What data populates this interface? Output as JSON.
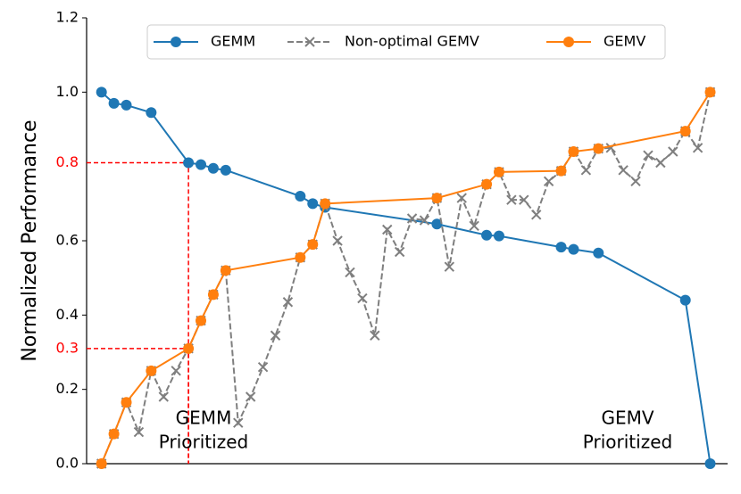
{
  "chart_data": {
    "type": "line",
    "y_label": "Normalized Performance",
    "xlim": [
      -1.2,
      50.4
    ],
    "ylim": [
      0,
      1.2
    ],
    "yticks": [
      {
        "value": 0,
        "label": "0.0"
      },
      0.2,
      0.4,
      0.6,
      {
        "value": 1,
        "label": "1.0"
      },
      1.2
    ],
    "legend": "upper center",
    "series": [
      {
        "name": "GEMM",
        "color": "#1f77b4",
        "marker": "o",
        "linestyle": "solid",
        "x": [
          0,
          1,
          2,
          4,
          7,
          8,
          9,
          10,
          16,
          17,
          18,
          27,
          31,
          32,
          37,
          38,
          40,
          47,
          49
        ],
        "values": [
          1.0,
          0.97,
          0.965,
          0.945,
          0.81,
          0.805,
          0.795,
          0.79,
          0.72,
          0.7,
          0.69,
          0.645,
          0.615,
          0.613,
          0.583,
          0.577,
          0.567,
          0.44,
          0
        ]
      },
      {
        "name": "Non-optimal GEMV",
        "color": "#7f7f7f",
        "marker": "x",
        "linestyle": "dashed",
        "x": [
          0,
          1,
          2,
          3,
          4,
          5,
          6,
          7,
          8,
          9,
          10,
          11,
          12,
          13,
          14,
          15,
          16,
          17,
          18,
          19,
          20,
          21,
          22,
          23,
          24,
          25,
          26,
          27,
          28,
          29,
          30,
          31,
          32,
          33,
          34,
          35,
          36,
          37,
          38,
          39,
          40,
          41,
          42,
          43,
          44,
          45,
          46,
          47,
          48,
          49
        ],
        "values": [
          0,
          0.08,
          0.165,
          0.085,
          0.25,
          0.18,
          0.25,
          0.31,
          0.385,
          0.455,
          0.52,
          0.11,
          0.18,
          0.26,
          0.345,
          0.435,
          0.555,
          0.59,
          0.7,
          0.6,
          0.515,
          0.445,
          0.345,
          0.63,
          0.57,
          0.66,
          0.655,
          0.715,
          0.53,
          0.715,
          0.64,
          0.752,
          0.785,
          0.71,
          0.71,
          0.67,
          0.76,
          0.788,
          0.84,
          0.79,
          0.848,
          0.85,
          0.79,
          0.76,
          0.83,
          0.81,
          0.84,
          0.895,
          0.85,
          1.0
        ]
      },
      {
        "name": "GEMV",
        "color": "#ff7f0e",
        "marker": "o",
        "linestyle": "solid",
        "x": [
          0,
          1,
          2,
          4,
          7,
          8,
          9,
          10,
          16,
          17,
          18,
          27,
          31,
          32,
          37,
          38,
          40,
          47,
          49
        ],
        "values": [
          0,
          0.08,
          0.165,
          0.25,
          0.31,
          0.385,
          0.455,
          0.52,
          0.555,
          0.59,
          0.7,
          0.715,
          0.752,
          0.785,
          0.788,
          0.84,
          0.848,
          0.895,
          1.0
        ]
      }
    ],
    "reference_lines": [
      {
        "value": 0.81,
        "label": "0.8",
        "x": 7,
        "color": "#ff0000"
      },
      {
        "value": 0.31,
        "label": "0.3",
        "x": 7,
        "color": "#ff0000"
      }
    ],
    "annotations": [
      {
        "lines": [
          "GEMM",
          "Prioritized"
        ]
      },
      {
        "lines": [
          "GEMV",
          "Prioritized"
        ]
      }
    ]
  }
}
